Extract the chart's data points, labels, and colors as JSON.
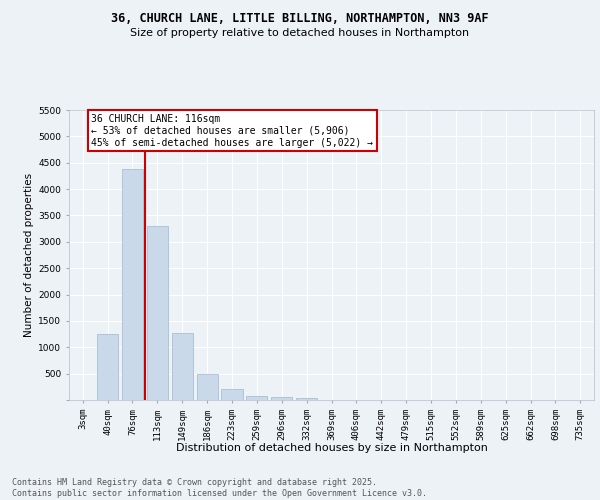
{
  "title_line1": "36, CHURCH LANE, LITTLE BILLING, NORTHAMPTON, NN3 9AF",
  "title_line2": "Size of property relative to detached houses in Northampton",
  "xlabel": "Distribution of detached houses by size in Northampton",
  "ylabel": "Number of detached properties",
  "categories": [
    "3sqm",
    "40sqm",
    "76sqm",
    "113sqm",
    "149sqm",
    "186sqm",
    "223sqm",
    "259sqm",
    "296sqm",
    "332sqm",
    "369sqm",
    "406sqm",
    "442sqm",
    "479sqm",
    "515sqm",
    "552sqm",
    "589sqm",
    "625sqm",
    "662sqm",
    "698sqm",
    "735sqm"
  ],
  "values": [
    0,
    1250,
    4380,
    3300,
    1270,
    500,
    215,
    80,
    50,
    35,
    0,
    0,
    0,
    0,
    0,
    0,
    0,
    0,
    0,
    0,
    0
  ],
  "bar_color": "#c9d9ea",
  "bar_edge_color": "#9fb8d0",
  "vline_color": "#cc0000",
  "vline_index": 2.5,
  "annotation_text": "36 CHURCH LANE: 116sqm\n← 53% of detached houses are smaller (5,906)\n45% of semi-detached houses are larger (5,022) →",
  "annotation_box_facecolor": "#ffffff",
  "annotation_box_edgecolor": "#cc0000",
  "ylim_max": 5500,
  "yticks": [
    0,
    500,
    1000,
    1500,
    2000,
    2500,
    3000,
    3500,
    4000,
    4500,
    5000,
    5500
  ],
  "bg_color": "#edf2f7",
  "grid_color": "#ffffff",
  "footer": "Contains HM Land Registry data © Crown copyright and database right 2025.\nContains public sector information licensed under the Open Government Licence v3.0.",
  "title_fontsize": 8.5,
  "subtitle_fontsize": 8,
  "ylabel_fontsize": 7.5,
  "xlabel_fontsize": 8,
  "tick_fontsize": 6.5,
  "annotation_fontsize": 7,
  "footer_fontsize": 6
}
